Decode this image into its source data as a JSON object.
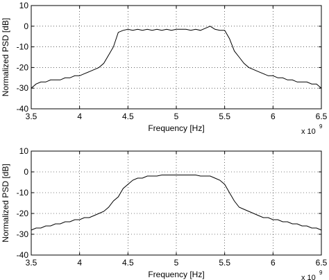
{
  "chart_data": [
    {
      "type": "line",
      "xlabel": "Frequency [Hz]",
      "ylabel": "Normalized PSD [dB]",
      "x_multiplier_label": "x 10",
      "x_multiplier_exponent": "9",
      "xlim": [
        3500000000.0,
        6500000000.0
      ],
      "ylim": [
        -40,
        10
      ],
      "xticks": [
        3500000000.0,
        4000000000.0,
        4500000000.0,
        5000000000.0,
        5500000000.0,
        6000000000.0,
        6500000000.0
      ],
      "xtick_labels": [
        "3.5",
        "4",
        "4.5",
        "5",
        "5.5",
        "6",
        "6.5"
      ],
      "yticks": [
        -40,
        -30,
        -20,
        -10,
        0,
        10
      ],
      "ytick_labels": [
        "-40",
        "-30",
        "-20",
        "-10",
        "0",
        "10"
      ],
      "grid": true,
      "series": [
        {
          "x": [
            3500000000.0,
            3550000000.0,
            3600000000.0,
            3650000000.0,
            3700000000.0,
            3750000000.0,
            3800000000.0,
            3850000000.0,
            3900000000.0,
            3950000000.0,
            4000000000.0,
            4050000000.0,
            4100000000.0,
            4150000000.0,
            4200000000.0,
            4250000000.0,
            4300000000.0,
            4350000000.0,
            4400000000.0,
            4450000000.0,
            4500000000.0,
            4550000000.0,
            4600000000.0,
            4650000000.0,
            4700000000.0,
            4750000000.0,
            4800000000.0,
            4850000000.0,
            4900000000.0,
            4950000000.0,
            5000000000.0,
            5050000000.0,
            5100000000.0,
            5150000000.0,
            5200000000.0,
            5250000000.0,
            5300000000.0,
            5350000000.0,
            5400000000.0,
            5450000000.0,
            5500000000.0,
            5550000000.0,
            5600000000.0,
            5650000000.0,
            5700000000.0,
            5750000000.0,
            5800000000.0,
            5850000000.0,
            5900000000.0,
            5950000000.0,
            6000000000.0,
            6050000000.0,
            6100000000.0,
            6150000000.0,
            6200000000.0,
            6250000000.0,
            6300000000.0,
            6350000000.0,
            6400000000.0,
            6450000000.0,
            6500000000.0
          ],
          "y": [
            -30,
            -28,
            -27,
            -27,
            -26,
            -26,
            -26,
            -25,
            -25,
            -24,
            -24,
            -23,
            -22,
            -21,
            -20,
            -18,
            -14,
            -10,
            -3,
            -2,
            -1.5,
            -2,
            -1.5,
            -2,
            -1.5,
            -2,
            -1.5,
            -2,
            -1.5,
            -2,
            -1.5,
            -1.5,
            -1.5,
            -2,
            -1.5,
            -2,
            -1,
            0,
            -1.5,
            -2,
            -2,
            -6,
            -12,
            -15,
            -18,
            -20,
            -21,
            -22,
            -23,
            -24,
            -24,
            -25,
            -25,
            -26,
            -26,
            -27,
            -27,
            -27,
            -28,
            -28,
            -30
          ]
        }
      ]
    },
    {
      "type": "line",
      "xlabel": "Frequency [Hz]",
      "ylabel": "Normalized PSD [dB]",
      "x_multiplier_label": "x 10",
      "x_multiplier_exponent": "9",
      "xlim": [
        3500000000.0,
        6500000000.0
      ],
      "ylim": [
        -40,
        10
      ],
      "xticks": [
        3500000000.0,
        4000000000.0,
        4500000000.0,
        5000000000.0,
        5500000000.0,
        6000000000.0,
        6500000000.0
      ],
      "xtick_labels": [
        "3.5",
        "4",
        "4.5",
        "5",
        "5.5",
        "6",
        "6.5"
      ],
      "yticks": [
        -40,
        -30,
        -20,
        -10,
        0,
        10
      ],
      "ytick_labels": [
        "-40",
        "-30",
        "-20",
        "-10",
        "0",
        "10"
      ],
      "grid": true,
      "series": [
        {
          "x": [
            3500000000.0,
            3550000000.0,
            3600000000.0,
            3650000000.0,
            3700000000.0,
            3750000000.0,
            3800000000.0,
            3850000000.0,
            3900000000.0,
            3950000000.0,
            4000000000.0,
            4050000000.0,
            4100000000.0,
            4150000000.0,
            4200000000.0,
            4250000000.0,
            4300000000.0,
            4350000000.0,
            4400000000.0,
            4450000000.0,
            4500000000.0,
            4550000000.0,
            4600000000.0,
            4650000000.0,
            4700000000.0,
            4750000000.0,
            4800000000.0,
            4850000000.0,
            4900000000.0,
            4950000000.0,
            5000000000.0,
            5050000000.0,
            5100000000.0,
            5150000000.0,
            5200000000.0,
            5250000000.0,
            5300000000.0,
            5350000000.0,
            5400000000.0,
            5450000000.0,
            5500000000.0,
            5550000000.0,
            5600000000.0,
            5650000000.0,
            5700000000.0,
            5750000000.0,
            5800000000.0,
            5850000000.0,
            5900000000.0,
            5950000000.0,
            6000000000.0,
            6050000000.0,
            6100000000.0,
            6150000000.0,
            6200000000.0,
            6250000000.0,
            6300000000.0,
            6350000000.0,
            6400000000.0,
            6450000000.0,
            6500000000.0
          ],
          "y": [
            -28,
            -27,
            -27,
            -26,
            -26,
            -25,
            -25,
            -24,
            -24,
            -23,
            -23,
            -22,
            -22,
            -21,
            -20,
            -19,
            -17,
            -14,
            -12,
            -8,
            -6,
            -4,
            -3,
            -3,
            -2,
            -2,
            -2,
            -1.5,
            -1.5,
            -1.5,
            -1.5,
            -1.5,
            -1.5,
            -1.5,
            -1.5,
            -2,
            -2,
            -2,
            -3,
            -4,
            -6,
            -10,
            -14,
            -17,
            -18,
            -19,
            -20,
            -21,
            -22,
            -22,
            -23,
            -23,
            -24,
            -24,
            -25,
            -25,
            -26,
            -26,
            -27,
            -27,
            -28
          ]
        }
      ]
    }
  ]
}
